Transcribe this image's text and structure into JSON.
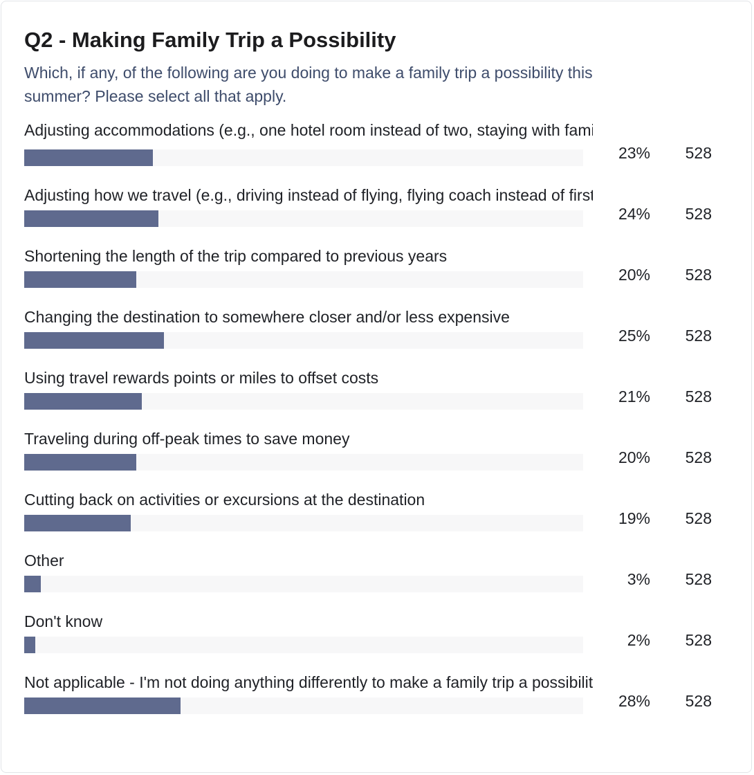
{
  "title": "Q2 - Making Family Trip a Possibility",
  "subtitle": "Which, if any, of the following are you doing to make a family trip a possibility this summer? Please select all that apply.",
  "chart_data": {
    "type": "bar",
    "orientation": "horizontal",
    "xlim": [
      0,
      100
    ],
    "categories": [
      "Adjusting accommodations (e.g., one hotel room instead of two, staying with family/friends)",
      "Adjusting how we travel (e.g., driving instead of flying, flying coach instead of first class)",
      "Shortening the length of the trip compared to previous years",
      "Changing the destination to somewhere closer and/or less expensive",
      "Using travel rewards points or miles to offset costs",
      "Traveling during off-peak times to save money",
      "Cutting back on activities or excursions at the destination",
      "Other",
      "Don't know",
      "Not applicable - I'm not doing anything differently to make a family trip a possibility"
    ],
    "values": [
      23,
      24,
      20,
      25,
      21,
      20,
      19,
      3,
      2,
      28
    ],
    "percent_labels": [
      "23%",
      "24%",
      "20%",
      "25%",
      "21%",
      "20%",
      "19%",
      "3%",
      "2%",
      "28%"
    ],
    "counts": [
      "528",
      "528",
      "528",
      "528",
      "528",
      "528",
      "528",
      "528",
      "528",
      "528"
    ],
    "bar_color": "#5f6a8e",
    "track_color": "#f7f7f8"
  }
}
